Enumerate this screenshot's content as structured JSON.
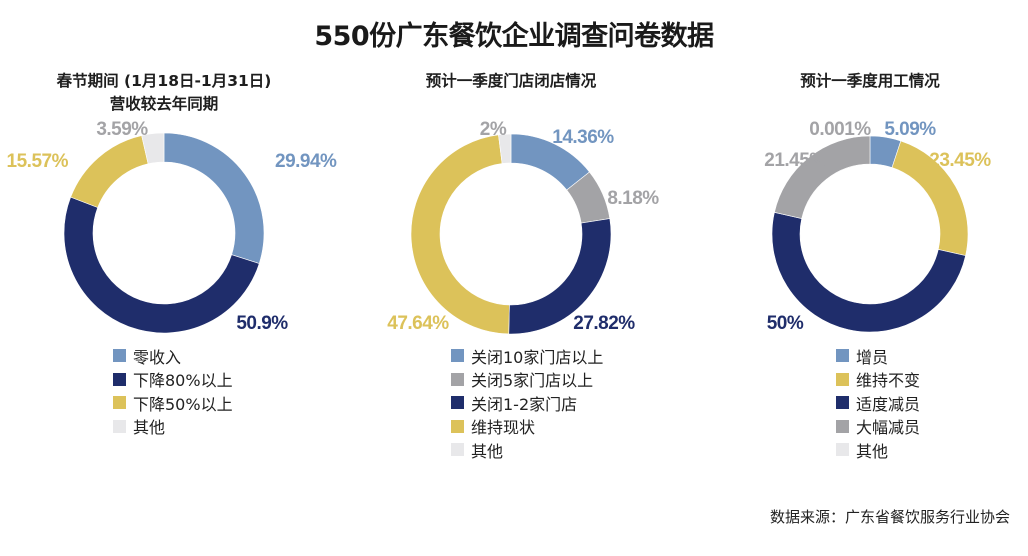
{
  "title": "550份广东餐饮企业调查问卷数据",
  "source": "数据来源：广东省餐饮服务行业协会",
  "colors": {
    "light_blue": "#7295c0",
    "navy": "#1f2d6b",
    "gold": "#dcc25a",
    "gray": "#a3a3a6",
    "light_gray": "#e8e8ea"
  },
  "chart_data": [
    {
      "type": "pie",
      "donut": true,
      "title_line1": "春节期间 (1月18日-1月31日)",
      "title_line2": "营收较去年同期",
      "slices": [
        {
          "label": "零收入",
          "value": 29.94,
          "display": "29.94%",
          "color": "#7295c0"
        },
        {
          "label": "下降80%以上",
          "value": 50.9,
          "display": "50.9%",
          "color": "#1f2d6b"
        },
        {
          "label": "下降50%以上",
          "value": 15.57,
          "display": "15.57%",
          "color": "#dcc25a"
        },
        {
          "label": "其他",
          "value": 3.59,
          "display": "3.59%",
          "color": "#e8e8ea"
        }
      ],
      "label_colors": [
        "#7295c0",
        "#1f2d6b",
        "#dcc25a",
        "#a3a3a6"
      ],
      "legend": [
        "零收入",
        "下降80%以上",
        "下降50%以上",
        "其他"
      ],
      "legend_colors": [
        "#7295c0",
        "#1f2d6b",
        "#dcc25a",
        "#e8e8ea"
      ]
    },
    {
      "type": "pie",
      "donut": true,
      "title_line1": "预计一季度门店闭店情况",
      "title_line2": "",
      "slices": [
        {
          "label": "关闭10家门店以上",
          "value": 14.36,
          "display": "14.36%",
          "color": "#7295c0"
        },
        {
          "label": "关闭5家门店以上",
          "value": 8.18,
          "display": "8.18%",
          "color": "#a3a3a6"
        },
        {
          "label": "关闭1-2家门店",
          "value": 27.82,
          "display": "27.82%",
          "color": "#1f2d6b"
        },
        {
          "label": "维持现状",
          "value": 47.64,
          "display": "47.64%",
          "color": "#dcc25a"
        },
        {
          "label": "其他",
          "value": 2,
          "display": "2%",
          "color": "#e8e8ea"
        }
      ],
      "label_colors": [
        "#7295c0",
        "#a3a3a6",
        "#1f2d6b",
        "#dcc25a",
        "#a3a3a6"
      ],
      "legend": [
        "关闭10家门店以上",
        "关闭5家门店以上",
        "关闭1-2家门店",
        "维持现状",
        "其他"
      ],
      "legend_colors": [
        "#7295c0",
        "#a3a3a6",
        "#1f2d6b",
        "#dcc25a",
        "#e8e8ea"
      ]
    },
    {
      "type": "pie",
      "donut": true,
      "title_line1": "预计一季度用工情况",
      "title_line2": "",
      "slices": [
        {
          "label": "增员",
          "value": 5.09,
          "display": "5.09%",
          "color": "#7295c0"
        },
        {
          "label": "维持不变",
          "value": 23.45,
          "display": "23.45%",
          "color": "#dcc25a"
        },
        {
          "label": "适度减员",
          "value": 50,
          "display": "50%",
          "color": "#1f2d6b"
        },
        {
          "label": "大幅减员",
          "value": 21.45,
          "display": "21.45%",
          "color": "#a3a3a6"
        },
        {
          "label": "其他",
          "value": 0.001,
          "display": "0.001%",
          "color": "#e8e8ea"
        }
      ],
      "label_colors": [
        "#7295c0",
        "#dcc25a",
        "#1f2d6b",
        "#a3a3a6",
        "#a3a3a6"
      ],
      "legend": [
        "增员",
        "维持不变",
        "适度减员",
        "大幅减员",
        "其他"
      ],
      "legend_colors": [
        "#7295c0",
        "#dcc25a",
        "#1f2d6b",
        "#a3a3a6",
        "#e8e8ea"
      ]
    }
  ]
}
